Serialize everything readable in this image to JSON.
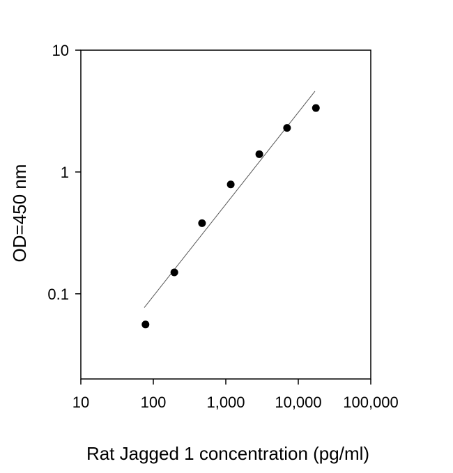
{
  "chart_data": {
    "type": "scatter",
    "title": "",
    "xlabel": "Rat Jagged 1 concentration (pg/ml)",
    "ylabel": "OD=450 nm",
    "x_scale": "log",
    "y_scale": "log",
    "xlim": [
      10,
      100000
    ],
    "ylim": [
      0.02,
      10
    ],
    "grid": false,
    "legend": "none",
    "x_ticks": [
      {
        "value": 10,
        "label": "10"
      },
      {
        "value": 100,
        "label": "100"
      },
      {
        "value": 1000,
        "label": "1,000"
      },
      {
        "value": 10000,
        "label": "10,000"
      },
      {
        "value": 100000,
        "label": "100,000"
      }
    ],
    "y_ticks": [
      {
        "value": 0.1,
        "label": "0.1"
      },
      {
        "value": 1,
        "label": "1"
      },
      {
        "value": 10,
        "label": "10"
      }
    ],
    "series": [
      {
        "points": [
          {
            "x": 78,
            "y": 0.056
          },
          {
            "x": 195,
            "y": 0.15
          },
          {
            "x": 470,
            "y": 0.38
          },
          {
            "x": 1170,
            "y": 0.79
          },
          {
            "x": 2900,
            "y": 1.4
          },
          {
            "x": 7000,
            "y": 2.3
          },
          {
            "x": 17500,
            "y": 3.35
          }
        ]
      }
    ],
    "fit_line": {
      "type": "log-log linear",
      "x": [
        75,
        17000
      ],
      "y": [
        0.077,
        4.6
      ]
    },
    "colors": {
      "marker": "#000000",
      "fit_line": "#555555",
      "axis": "#000000"
    }
  }
}
